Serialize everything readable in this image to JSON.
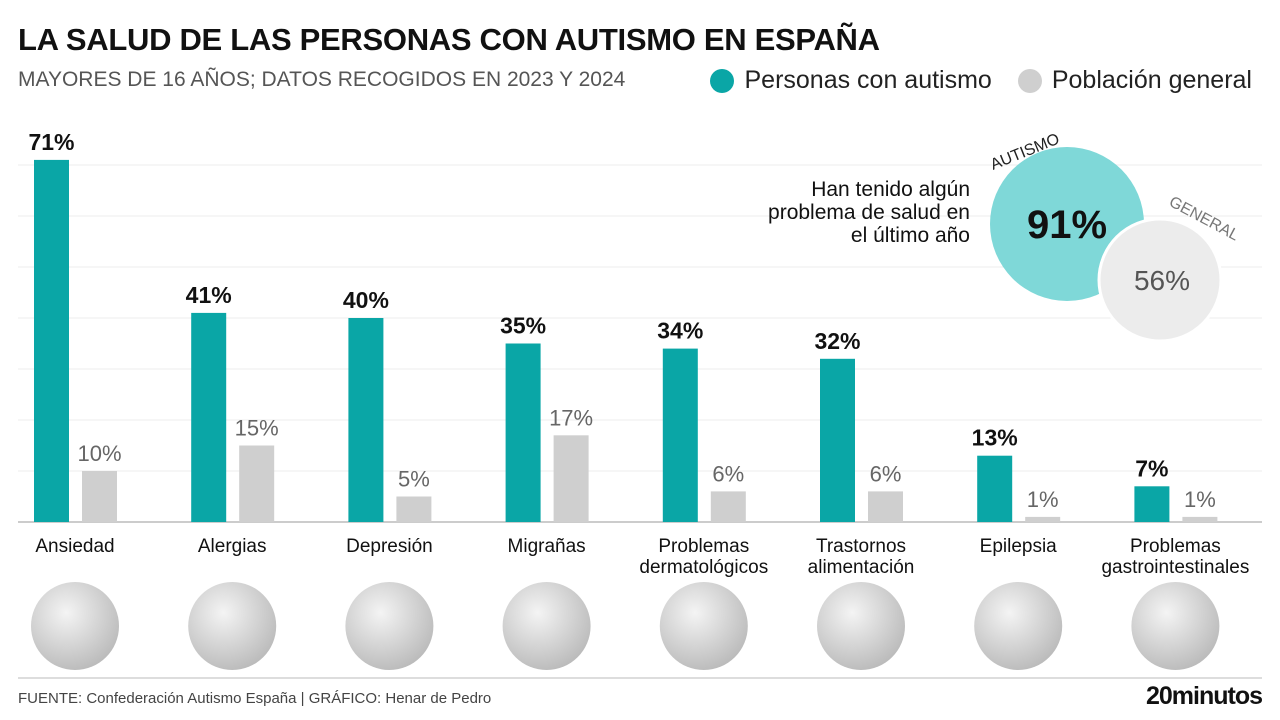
{
  "title": "LA SALUD DE LAS PERSONAS CON AUTISMO EN ESPAÑA",
  "subtitle": "MAYORES DE 16 AÑOS; DATOS RECOGIDOS EN 2023 Y 2024",
  "legend": [
    {
      "label": "Personas con autismo",
      "color": "#0aa6a6"
    },
    {
      "label": "Población general",
      "color": "#cfcfcf"
    }
  ],
  "inset": {
    "text": "Han tenido algún problema de salud en el último año",
    "autismo_label": "AUTISMO",
    "autismo_value": "91%",
    "autismo_color": "#7fd8d8",
    "general_label": "GENERAL",
    "general_value": "56%",
    "general_color": "#ececec"
  },
  "chart_data": {
    "type": "bar",
    "categories": [
      "Ansiedad",
      "Alergias",
      "Depresión",
      "Migrañas",
      "Problemas dermatológicos",
      "Trastornos alimentación",
      "Epilepsia",
      "Problemas gastrointestinales"
    ],
    "category_lines": [
      [
        "Ansiedad"
      ],
      [
        "Alergias"
      ],
      [
        "Depresión"
      ],
      [
        "Migrañas"
      ],
      [
        "Problemas",
        "dermatológicos"
      ],
      [
        "Trastornos",
        "alimentación"
      ],
      [
        "Epilepsia"
      ],
      [
        "Problemas",
        "gastrointestinales"
      ]
    ],
    "series": [
      {
        "name": "Personas con autismo",
        "values": [
          71,
          41,
          40,
          35,
          34,
          32,
          13,
          7
        ],
        "color": "#0aa6a6"
      },
      {
        "name": "Población general",
        "values": [
          10,
          15,
          5,
          17,
          6,
          6,
          1,
          1
        ],
        "color": "#cfcfcf"
      }
    ],
    "unit": "%",
    "ylim": [
      0,
      80
    ],
    "grid": true,
    "legend_position": "top-right",
    "photo_icons": [
      "person-covering-face",
      "dandelion",
      "sad-face",
      "person-sneezing",
      "skin-texture",
      "empty-plate-cutlery",
      "brain",
      "hands-on-stomach"
    ]
  },
  "footer": {
    "source": "FUENTE: Confederación Autismo España  |  GRÁFICO: Henar de Pedro",
    "logo": "20minutos"
  }
}
